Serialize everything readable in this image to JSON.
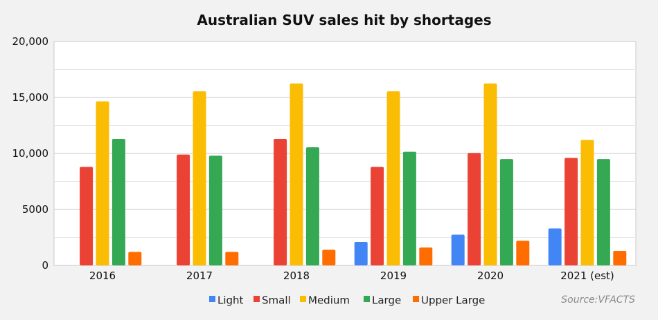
{
  "chart_data": {
    "type": "bar",
    "title": "Australian SUV sales hit by shortages",
    "xlabel": "",
    "ylabel": "",
    "categories": [
      "2016",
      "2017",
      "2018",
      "2019",
      "2020",
      "2021 (est)"
    ],
    "series": [
      {
        "name": "Light",
        "color": "#4285f4",
        "values": [
          0,
          0,
          0,
          2100,
          2750,
          3300
        ]
      },
      {
        "name": "Small",
        "color": "#ea4335",
        "values": [
          8800,
          9900,
          11300,
          8800,
          10050,
          9600
        ]
      },
      {
        "name": "Medium",
        "color": "#fbbc04",
        "values": [
          14650,
          15550,
          16250,
          15550,
          16250,
          11200
        ]
      },
      {
        "name": "Large",
        "color": "#34a853",
        "values": [
          11300,
          9800,
          10550,
          10150,
          9500,
          9500
        ]
      },
      {
        "name": "Upper Large",
        "color": "#ff6d01",
        "values": [
          1200,
          1200,
          1400,
          1600,
          2200,
          1300
        ]
      }
    ],
    "ylim": [
      0,
      20000
    ],
    "yticks": [
      {
        "value": 0,
        "label": "0"
      },
      {
        "value": 5000,
        "label": "5000"
      },
      {
        "value": 10000,
        "label": "10,000"
      },
      {
        "value": 15000,
        "label": "15,000"
      },
      {
        "value": 20000,
        "label": "20,000"
      }
    ],
    "grid": true,
    "legend_position": "bottom",
    "source": "Source:VFACTS"
  }
}
